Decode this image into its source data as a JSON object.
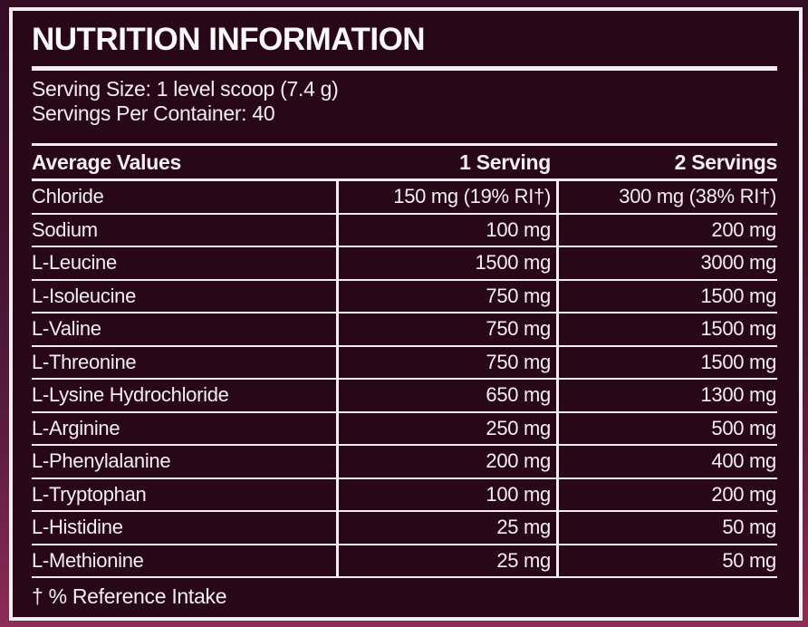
{
  "label": {
    "title": "NUTRITION INFORMATION",
    "serving_size": "Serving Size: 1 level scoop (7.4 g)",
    "servings_per_container": "Servings Per Container: 40",
    "footnote": "† % Reference Intake"
  },
  "table": {
    "headers": {
      "name": "Average Values",
      "serving1": "1 Serving",
      "serving2": "2 Servings"
    },
    "rows": [
      {
        "name": "Chloride",
        "serving1": "150 mg (19% RI†)",
        "serving2": "300 mg (38% RI†)"
      },
      {
        "name": "Sodium",
        "serving1": "100 mg",
        "serving2": "200 mg"
      },
      {
        "name": "L-Leucine",
        "serving1": "1500 mg",
        "serving2": "3000 mg"
      },
      {
        "name": "L-Isoleucine",
        "serving1": "750 mg",
        "serving2": "1500 mg"
      },
      {
        "name": "L-Valine",
        "serving1": "750 mg",
        "serving2": "1500 mg"
      },
      {
        "name": "L-Threonine",
        "serving1": "750 mg",
        "serving2": "1500 mg"
      },
      {
        "name": "L-Lysine Hydrochloride",
        "serving1": "650 mg",
        "serving2": "1300 mg"
      },
      {
        "name": "L-Arginine",
        "serving1": "250 mg",
        "serving2": "500 mg"
      },
      {
        "name": "L-Phenylalanine",
        "serving1": "200 mg",
        "serving2": "400 mg"
      },
      {
        "name": "L-Tryptophan",
        "serving1": "100 mg",
        "serving2": "200 mg"
      },
      {
        "name": "L-Histidine",
        "serving1": "25 mg",
        "serving2": "50 mg"
      },
      {
        "name": "L-Methionine",
        "serving1": "25 mg",
        "serving2": "50 mg"
      }
    ]
  },
  "colors": {
    "background_top": "#340c25",
    "background_bottom": "#8d2c57",
    "panel": "#270718",
    "frame_and_lines": "#f3edf2",
    "text": "#f4eef2"
  }
}
